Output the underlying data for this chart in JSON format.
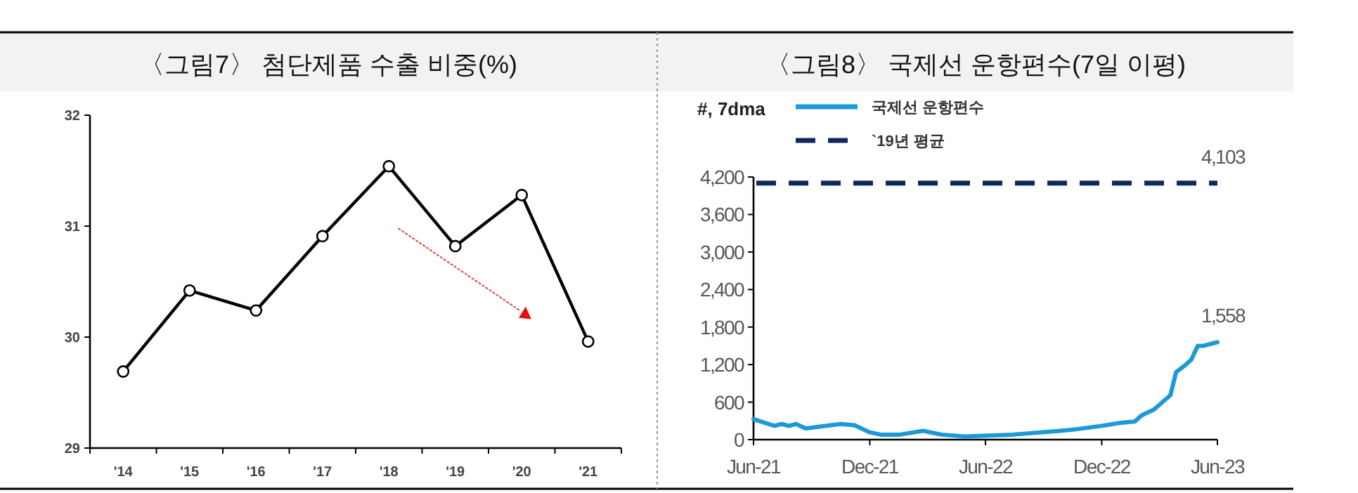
{
  "chart_data": [
    {
      "type": "line",
      "title": "〈그림7〉 첨단제품 수출 비중(%)",
      "categories": [
        "'14",
        "'15",
        "'16",
        "'17",
        "'18",
        "'19",
        "'20",
        "'21"
      ],
      "series": [
        {
          "color": "#000000",
          "values": [
            29.69,
            30.42,
            30.24,
            30.91,
            31.54,
            30.82,
            31.28,
            29.96
          ]
        }
      ],
      "ylim": [
        29,
        32
      ],
      "yticks": [
        29,
        30,
        31,
        32
      ],
      "marker": "circle",
      "line_style": "solid",
      "grid": false,
      "legend": false
    },
    {
      "type": "line",
      "title": "〈그림8〉 국제선 운항편수(7일 이평)",
      "ylabel": "#, 7dma",
      "series": [
        {
          "name": "국제선 운항편수",
          "color": "#1b9ad6",
          "x": [
            "2021-06-01",
            "2021-06-12",
            "2021-07-04",
            "2021-07-15",
            "2021-07-27",
            "2021-08-07",
            "2021-08-22",
            "2021-10-16",
            "2021-11-07",
            "2021-11-30",
            "2021-12-18",
            "2022-01-17",
            "2022-02-23",
            "2022-03-24",
            "2022-04-30",
            "2022-07-14",
            "2022-09-26",
            "2022-10-25",
            "2022-12-01",
            "2022-12-31",
            "2023-01-22",
            "2023-02-02",
            "2023-02-21",
            "2023-03-19",
            "2023-03-28",
            "2023-04-10",
            "2023-04-21",
            "2023-05-01",
            "2023-05-10",
            "2023-06-01"
          ],
          "values": [
            330,
            290,
            220,
            250,
            220,
            250,
            180,
            250,
            230,
            120,
            80,
            80,
            140,
            80,
            50,
            80,
            140,
            170,
            220,
            270,
            290,
            390,
            480,
            710,
            1080,
            1180,
            1280,
            1500,
            1500,
            1558
          ]
        }
      ],
      "xlim": [
        "2021-06-01",
        "2023-06-01"
      ],
      "xticks": [
        {
          "value": "2021-06-01",
          "label": "Jun-21"
        },
        {
          "value": "2021-12-01",
          "label": "Dec-21"
        },
        {
          "value": "2022-06-01",
          "label": "Jun-22"
        },
        {
          "value": "2022-12-01",
          "label": "Dec-22"
        },
        {
          "value": "2023-06-01",
          "label": "Jun-23"
        }
      ],
      "ylim": [
        0,
        4200
      ],
      "yticks": [
        0,
        600,
        {
          "value": 1200,
          "label": "1,200"
        },
        {
          "value": 1800,
          "label": "1,800"
        },
        {
          "value": 2400,
          "label": "2,400"
        },
        {
          "value": 3000,
          "label": "3,000"
        },
        {
          "value": 3600,
          "label": "3,600"
        },
        {
          "value": 4200,
          "label": "4,200"
        }
      ],
      "ref_lines": [
        {
          "axis": "y",
          "value": 4103,
          "label": "`19년 평균",
          "color": "#0d2a5e",
          "line_style": "dashed"
        }
      ],
      "annotations": [
        {
          "text": "4,103",
          "x": "2023-06-01",
          "y": 4103
        },
        {
          "text": "1,558",
          "x": "2023-06-01",
          "y": 1558
        }
      ],
      "marker": "none",
      "line_style": "solid",
      "grid": false,
      "legend": "top left"
    }
  ]
}
